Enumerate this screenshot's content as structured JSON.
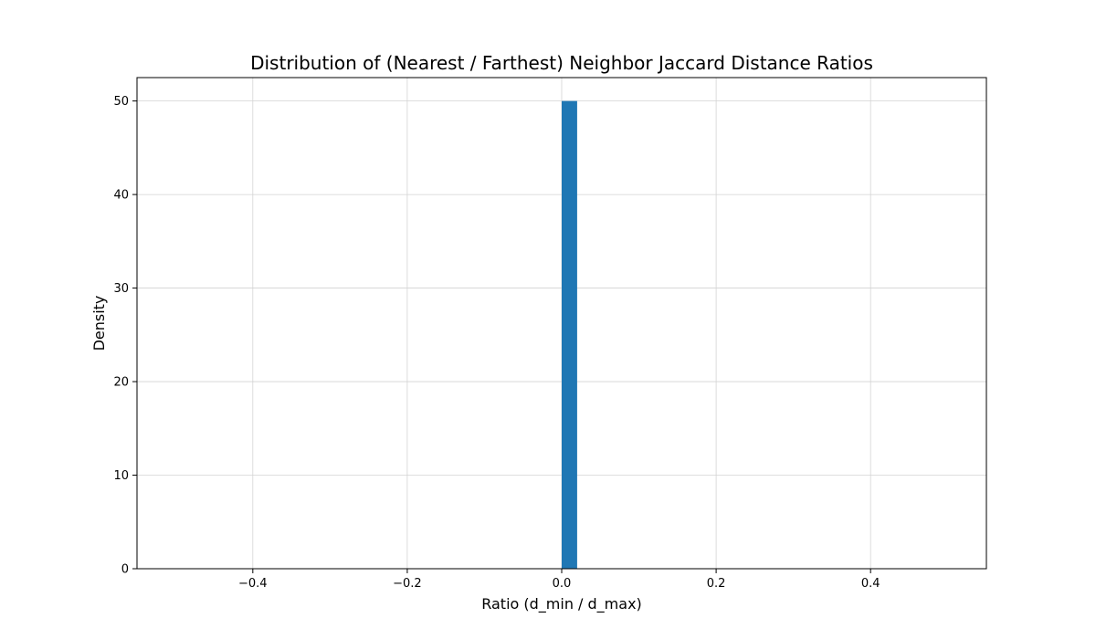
{
  "chart_data": {
    "type": "bar",
    "title": "Distribution of (Nearest / Farthest) Neighbor Jaccard Distance Ratios",
    "xlabel": "Ratio (d_min / d_max)",
    "ylabel": "Density",
    "xlim": [
      -0.55,
      0.55
    ],
    "ylim": [
      0,
      52.5
    ],
    "xticks": [
      -0.4,
      -0.2,
      0.0,
      0.2,
      0.4
    ],
    "xtick_labels": [
      "−0.4",
      "−0.2",
      "0.0",
      "0.2",
      "0.4"
    ],
    "yticks": [
      0,
      10,
      20,
      30,
      40,
      50
    ],
    "ytick_labels": [
      "0",
      "10",
      "20",
      "30",
      "40",
      "50"
    ],
    "grid": true,
    "bars": [
      {
        "x0": 0.0,
        "x1": 0.02,
        "value": 50
      }
    ],
    "colors": {
      "bar": "#1f77b4"
    }
  }
}
